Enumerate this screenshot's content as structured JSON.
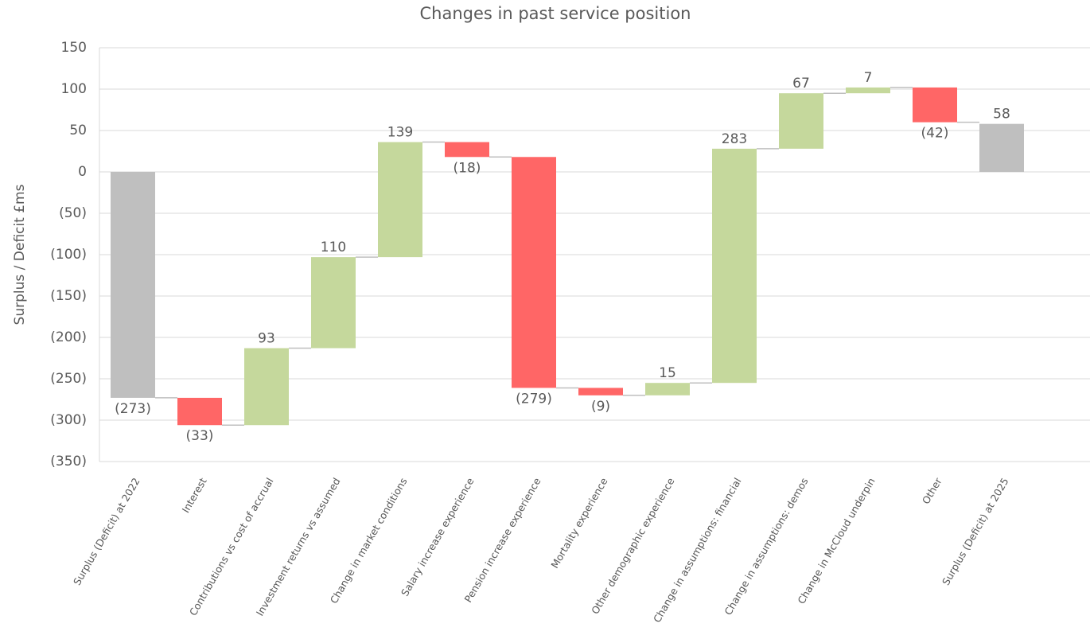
{
  "chart_data": {
    "type": "waterfall",
    "title": "Changes in past service position",
    "y_label": "Surplus / Deficit £ms",
    "categories": [
      "Surplus (Deficit) at 2022",
      "Interest",
      "Contributions vs cost of accrual",
      "Investment returns vs assumed",
      "Change in market conditions",
      "Salary increase experience",
      "Pension increase experience",
      "Mortality experience",
      "Other demographic experience",
      "Change in assumptions: financial",
      "Change in assumptions: demos",
      "Change in McCloud underpin",
      "Other",
      "Surplus (Deficit) at 2025"
    ],
    "values": [
      -273,
      -33,
      93,
      110,
      139,
      -18,
      -279,
      -9,
      15,
      283,
      67,
      7,
      -42,
      58
    ],
    "value_labels": [
      "(273)",
      "(33)",
      "93",
      "110",
      "139",
      "(18)",
      "(279)",
      "(9)",
      "15",
      "283",
      "67",
      "7",
      "(42)",
      "58"
    ],
    "colors": [
      "#bfbfbf",
      "#ff6666",
      "#c5d89c",
      "#c5d89c",
      "#c5d89c",
      "#ff6666",
      "#ff6666",
      "#ff6666",
      "#c5d89c",
      "#c5d89c",
      "#c5d89c",
      "#c5d89c",
      "#ff6666",
      "#bfbfbf"
    ],
    "ylim": [
      -350,
      150
    ],
    "yticks": [
      {
        "value": -350,
        "label": "(350)"
      },
      {
        "value": -300,
        "label": "(300)"
      },
      {
        "value": -250,
        "label": "(250)"
      },
      {
        "value": -200,
        "label": "(200)"
      },
      {
        "value": -150,
        "label": "(150)"
      },
      {
        "value": -100,
        "label": "(100)"
      },
      {
        "value": -50,
        "label": "(50)"
      },
      0,
      50,
      100,
      150
    ],
    "grid": true
  }
}
